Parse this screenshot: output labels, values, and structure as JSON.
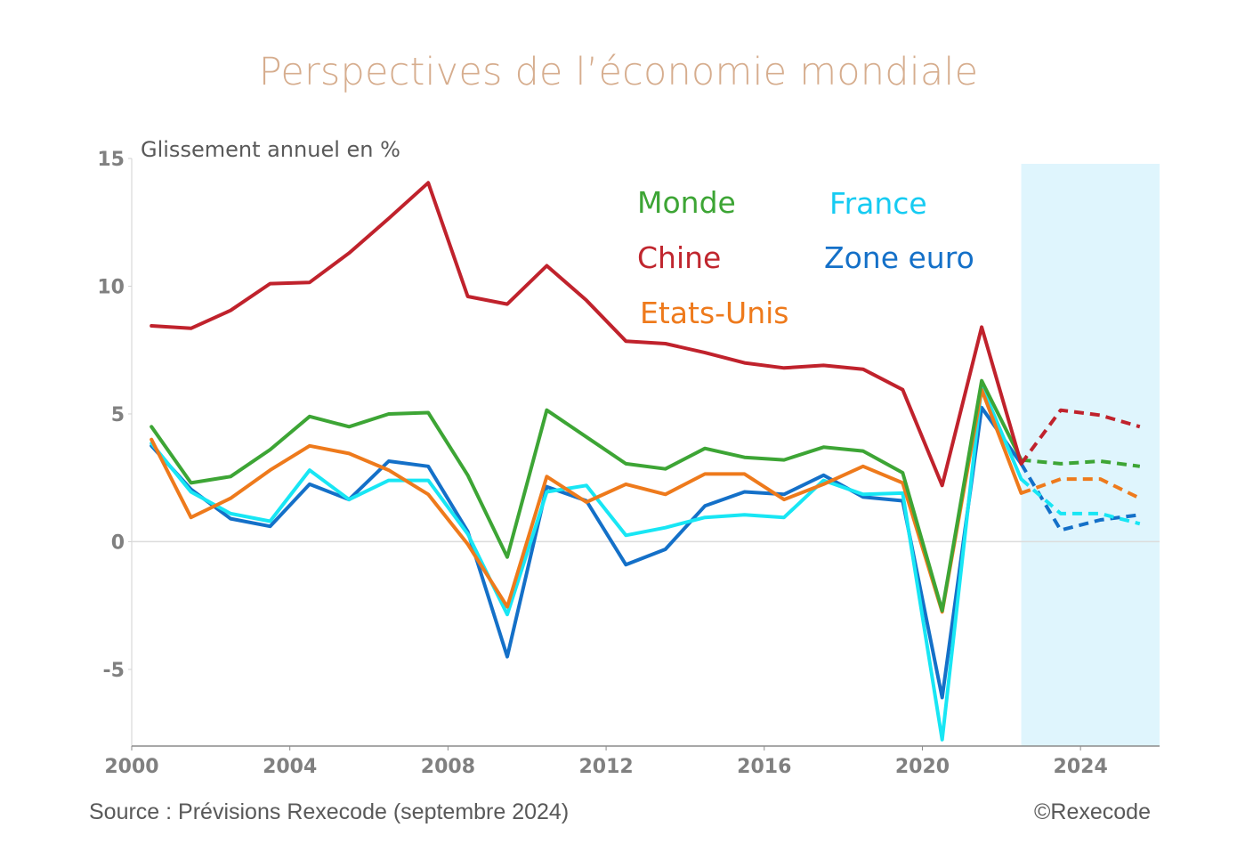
{
  "chart_data": {
    "type": "line",
    "title": "Perspectives de l’économie mondiale",
    "ylabel": "Glissement annuel en %",
    "xlabel": "",
    "xlim": [
      2000,
      2026
    ],
    "ylim": [
      -8,
      15
    ],
    "x_ticks": [
      2000,
      2004,
      2008,
      2012,
      2016,
      2020,
      2024
    ],
    "y_ticks": [
      15,
      10,
      5,
      0,
      -5
    ],
    "grid": false,
    "zero_line": true,
    "forecast_shading": {
      "from": 2022.5,
      "to": 2026,
      "color": "#DFF5FD"
    },
    "forecast_start_year": 2022.5,
    "x": [
      2000.5,
      2001.5,
      2002.5,
      2003.5,
      2004.5,
      2005.5,
      2006.5,
      2007.5,
      2008.5,
      2009.5,
      2010.5,
      2011.5,
      2012.5,
      2013.5,
      2014.5,
      2015.5,
      2016.5,
      2017.5,
      2018.5,
      2019.5,
      2020.5,
      2021.5,
      2022.5,
      2023.5,
      2024.5,
      2025.5
    ],
    "series": [
      {
        "name": "Chine",
        "color": "#C0222C",
        "values": [
          8.45,
          8.35,
          9.05,
          10.1,
          10.15,
          11.3,
          12.65,
          14.05,
          9.6,
          9.3,
          10.8,
          9.45,
          7.85,
          7.75,
          7.4,
          7.0,
          6.8,
          6.9,
          6.75,
          5.95,
          2.2,
          8.4,
          3.05,
          5.15,
          4.95,
          4.5
        ]
      },
      {
        "name": "Monde",
        "color": "#3DA535",
        "values": [
          4.5,
          2.3,
          2.55,
          3.6,
          4.9,
          4.5,
          5.0,
          5.05,
          2.6,
          -0.6,
          5.15,
          4.1,
          3.05,
          2.85,
          3.65,
          3.3,
          3.2,
          3.7,
          3.55,
          2.7,
          -2.7,
          6.3,
          3.2,
          3.05,
          3.15,
          2.95
        ]
      },
      {
        "name": "Etats-Unis",
        "color": "#EE7A1C",
        "values": [
          4.0,
          0.95,
          1.7,
          2.8,
          3.75,
          3.45,
          2.8,
          1.85,
          -0.1,
          -2.55,
          2.55,
          1.55,
          2.25,
          1.85,
          2.65,
          2.65,
          1.65,
          2.25,
          2.95,
          2.3,
          -2.75,
          5.95,
          1.9,
          2.45,
          2.45,
          1.7
        ]
      },
      {
        "name": "Zone euro",
        "color": "#1470C8",
        "values": [
          3.75,
          2.05,
          0.9,
          0.6,
          2.25,
          1.65,
          3.15,
          2.95,
          0.4,
          -4.5,
          2.15,
          1.6,
          -0.9,
          -0.3,
          1.4,
          1.95,
          1.85,
          2.6,
          1.75,
          1.6,
          -6.1,
          5.25,
          3.05,
          0.45,
          0.85,
          1.05
        ]
      },
      {
        "name": "France",
        "color": "#18E6F4",
        "values": [
          3.85,
          1.95,
          1.1,
          0.8,
          2.8,
          1.65,
          2.4,
          2.4,
          0.3,
          -2.85,
          1.95,
          2.2,
          0.25,
          0.55,
          0.95,
          1.05,
          0.95,
          2.4,
          1.85,
          1.9,
          -7.75,
          6.1,
          2.45,
          1.1,
          1.1,
          0.7
        ]
      }
    ],
    "legend": [
      {
        "label": "Monde",
        "color": "#3DA535"
      },
      {
        "label": "Chine",
        "color": "#C0262E"
      },
      {
        "label": "Etats-Unis",
        "color": "#EE7A1C"
      },
      {
        "label": "France",
        "color": "#16CBF2"
      },
      {
        "label": "Zone euro",
        "color": "#1470C8"
      }
    ],
    "legend_position": "top-center",
    "annotations": {
      "source": "Source : Prévisions Rexecode (septembre 2024)",
      "copyright": "©Rexecode"
    }
  }
}
